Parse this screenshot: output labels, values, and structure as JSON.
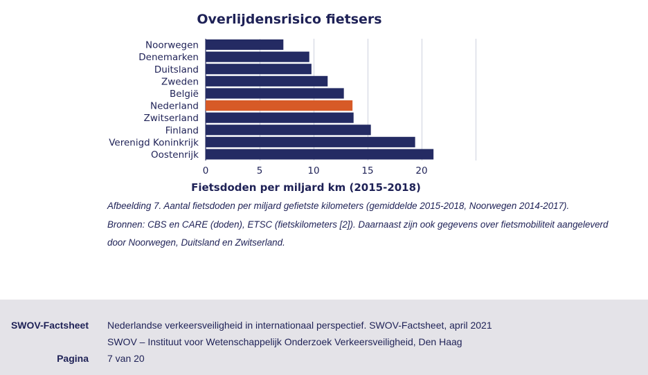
{
  "chart_data": {
    "type": "bar",
    "orientation": "horizontal",
    "title": "Overlijdensrisico fietsers",
    "xlabel": "Fietsdoden per miljard km (2015-2018)",
    "ylabel": "",
    "categories": [
      "Noorwegen",
      "Denemarken",
      "Duitsland",
      "Zweden",
      "België",
      "Nederland",
      "Zwitserland",
      "Finland",
      "Verenigd Koninkrijk",
      "Oostenrijk"
    ],
    "values": [
      7.2,
      9.6,
      9.8,
      11.3,
      12.8,
      13.6,
      13.7,
      15.3,
      19.4,
      21.1
    ],
    "highlight": "Nederland",
    "xlim": [
      0,
      25
    ],
    "xticks": [
      0,
      5,
      10,
      15,
      20
    ],
    "grid": true,
    "colors": {
      "bar": "#242b63",
      "highlight": "#d75a27",
      "grid": "#cdd1de",
      "text": "#1e2156"
    }
  },
  "caption": {
    "line1": "Afbeelding 7. Aantal fietsdoden per miljard gefietste kilometers (gemiddelde 2015-2018, Noorwegen 2014-2017).",
    "line2": "Bronnen: CBS en CARE (doden), ETSC (fietskilometers [2]). Daarnaast zijn ook gegevens over fietsmobiliteit aangeleverd",
    "line3": "door Noorwegen, Duitsland en Zwitserland."
  },
  "footer": {
    "label": "SWOV-Factsheet",
    "line1": "Nederlandse verkeersveiligheid in internationaal perspectief. SWOV-Factsheet, april 2021",
    "line2": "SWOV – Instituut voor Wetenschappelijk Onderzoek Verkeersveiligheid, Den Haag",
    "page_label": "Pagina",
    "page_value": "7 van 20"
  }
}
